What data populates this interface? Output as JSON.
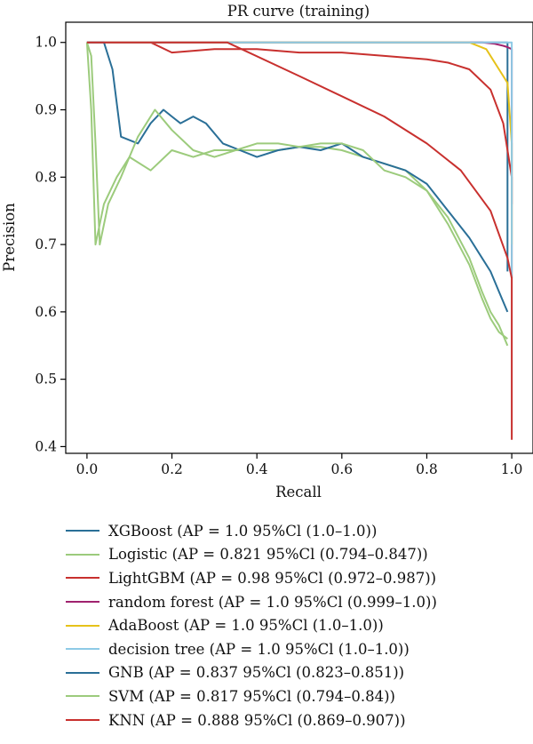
{
  "chart_data": {
    "type": "line",
    "title": "PR curve (training)",
    "xlabel": "Recall",
    "ylabel": "Precision",
    "xlim": [
      -0.05,
      1.05
    ],
    "ylim": [
      0.39,
      1.03
    ],
    "xticks": [
      0.0,
      0.2,
      0.4,
      0.6,
      0.8,
      1.0
    ],
    "yticks": [
      0.4,
      0.5,
      0.6,
      0.7,
      0.8,
      0.9,
      1.0
    ],
    "xtick_labels": [
      "0.0",
      "0.2",
      "0.4",
      "0.6",
      "0.8",
      "1.0"
    ],
    "ytick_labels": [
      "0.4",
      "0.5",
      "0.6",
      "0.7",
      "0.8",
      "0.9",
      "1.0"
    ],
    "grid": false,
    "legend_position": "below",
    "series": [
      {
        "name": "XGBoost (AP = 1.0  95%Cl (1.0–1.0))",
        "color": "#2a6f97",
        "x": [
          0,
          0.99,
          0.99
        ],
        "y": [
          1.0,
          1.0,
          0.66
        ]
      },
      {
        "name": "Logistic (AP = 0.821  95%Cl (0.794–0.847))",
        "color": "#9ccb7c",
        "x": [
          0,
          0.01,
          0.02,
          0.04,
          0.07,
          0.1,
          0.15,
          0.2,
          0.25,
          0.3,
          0.35,
          0.4,
          0.45,
          0.5,
          0.55,
          0.6,
          0.65,
          0.7,
          0.75,
          0.8,
          0.85,
          0.9,
          0.93,
          0.95,
          0.97,
          0.99
        ],
        "y": [
          1.0,
          0.9,
          0.7,
          0.76,
          0.8,
          0.83,
          0.81,
          0.84,
          0.83,
          0.84,
          0.84,
          0.84,
          0.84,
          0.845,
          0.845,
          0.84,
          0.83,
          0.82,
          0.81,
          0.78,
          0.74,
          0.68,
          0.63,
          0.6,
          0.58,
          0.55
        ]
      },
      {
        "name": "LightGBM (AP = 0.98  95%Cl (0.972–0.987))",
        "color": "#c8302e",
        "x": [
          0,
          0.15,
          0.2,
          0.3,
          0.4,
          0.5,
          0.6,
          0.7,
          0.8,
          0.85,
          0.9,
          0.95,
          0.98,
          1.0,
          1.0
        ],
        "y": [
          1.0,
          1.0,
          0.985,
          0.99,
          0.99,
          0.985,
          0.985,
          0.98,
          0.975,
          0.97,
          0.96,
          0.93,
          0.88,
          0.8,
          0.65
        ]
      },
      {
        "name": "random forest (AP = 1.0 95%Cl (0.999–1.0))",
        "color": "#a0226e",
        "x": [
          0,
          0.93,
          0.96,
          0.98,
          0.99,
          1.0,
          1.0
        ],
        "y": [
          1.0,
          1.0,
          0.998,
          0.995,
          0.993,
          0.99,
          0.76
        ]
      },
      {
        "name": "AdaBoost (AP = 1.0 95%Cl (1.0–1.0))",
        "color": "#e6c21a",
        "x": [
          0,
          0.9,
          0.94,
          0.97,
          0.99,
          1.0,
          1.0
        ],
        "y": [
          1.0,
          1.0,
          0.99,
          0.96,
          0.94,
          0.85,
          0.7
        ]
      },
      {
        "name": "decision tree (AP = 1.0 95%Cl (1.0–1.0))",
        "color": "#8ecae6",
        "x": [
          0,
          1.0,
          1.0
        ],
        "y": [
          1.0,
          1.0,
          0.65
        ]
      },
      {
        "name": "GNB (AP = 0.837 95%Cl (0.823–0.851))",
        "color": "#2a6f97",
        "x": [
          0,
          0.04,
          0.06,
          0.08,
          0.12,
          0.15,
          0.18,
          0.2,
          0.22,
          0.25,
          0.28,
          0.32,
          0.36,
          0.4,
          0.45,
          0.5,
          0.55,
          0.6,
          0.65,
          0.7,
          0.75,
          0.8,
          0.85,
          0.9,
          0.93,
          0.95,
          0.97,
          0.99
        ],
        "y": [
          1.0,
          1.0,
          0.96,
          0.86,
          0.85,
          0.88,
          0.9,
          0.89,
          0.88,
          0.89,
          0.88,
          0.85,
          0.84,
          0.83,
          0.84,
          0.845,
          0.84,
          0.85,
          0.83,
          0.82,
          0.81,
          0.79,
          0.75,
          0.71,
          0.68,
          0.66,
          0.63,
          0.6
        ]
      },
      {
        "name": "SVM (AP = 0.817 95%Cl (0.794–0.84))",
        "color": "#9ccb7c",
        "x": [
          0,
          0.01,
          0.02,
          0.03,
          0.05,
          0.08,
          0.12,
          0.16,
          0.2,
          0.25,
          0.3,
          0.35,
          0.4,
          0.45,
          0.5,
          0.55,
          0.6,
          0.65,
          0.7,
          0.75,
          0.8,
          0.85,
          0.9,
          0.93,
          0.95,
          0.97,
          0.99
        ],
        "y": [
          1.0,
          0.98,
          0.85,
          0.7,
          0.76,
          0.8,
          0.86,
          0.9,
          0.87,
          0.84,
          0.83,
          0.84,
          0.85,
          0.85,
          0.845,
          0.85,
          0.85,
          0.84,
          0.81,
          0.8,
          0.78,
          0.73,
          0.67,
          0.62,
          0.59,
          0.57,
          0.56
        ]
      },
      {
        "name": "KNN (AP = 0.888 95%Cl (0.869–0.907))",
        "color": "#c8302e",
        "x": [
          0,
          0.33,
          0.5,
          0.7,
          0.8,
          0.88,
          0.95,
          0.99,
          1.0,
          1.0
        ],
        "y": [
          1.0,
          1.0,
          0.95,
          0.89,
          0.85,
          0.81,
          0.75,
          0.68,
          0.65,
          0.41
        ]
      }
    ]
  }
}
